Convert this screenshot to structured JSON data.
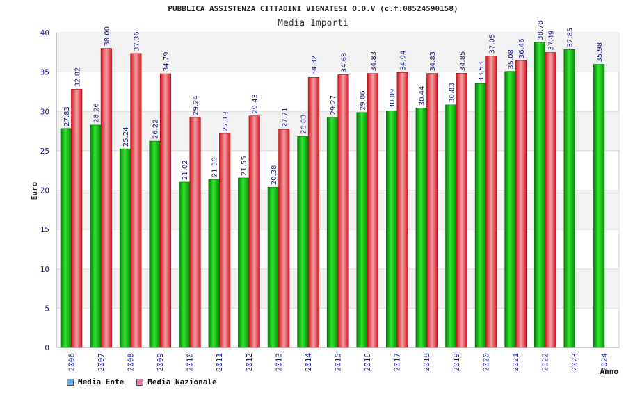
{
  "chart_data": {
    "type": "bar",
    "title": "PUBBLICA ASSISTENZA CITTADINI VIGNATESI O.D.V (c.f.08524590158)",
    "subtitle": "Media Importi",
    "xlabel": "Anno",
    "ylabel": "Euro",
    "ylim": [
      0,
      40
    ],
    "yticks": [
      0,
      5,
      10,
      15,
      20,
      25,
      30,
      35,
      40
    ],
    "categories": [
      "2006",
      "2007",
      "2008",
      "2009",
      "2010",
      "2011",
      "2012",
      "2013",
      "2014",
      "2015",
      "2016",
      "2017",
      "2018",
      "2019",
      "2020",
      "2021",
      "2022",
      "2023",
      "2024"
    ],
    "series": [
      {
        "name": "Media Ente",
        "color": "#1bb41b",
        "values": [
          27.83,
          28.26,
          25.24,
          26.22,
          21.02,
          21.36,
          21.55,
          20.38,
          26.83,
          29.27,
          29.86,
          30.09,
          30.44,
          30.83,
          33.53,
          35.08,
          38.78,
          37.85,
          35.98
        ],
        "labels": [
          "27.83",
          "28.26",
          "25.24",
          "26.22",
          "21.02",
          "21.36",
          "21.55",
          "20.38",
          "26.83",
          "29.27",
          "29.86",
          "30.09",
          "30.44",
          "30.83",
          "33.53",
          "35.08",
          "38.78",
          "37.85",
          "35.98"
        ]
      },
      {
        "name": "Media Nazionale",
        "color": "#e8323c",
        "values": [
          32.82,
          38.0,
          37.36,
          34.79,
          29.24,
          27.19,
          29.43,
          27.71,
          34.32,
          34.68,
          34.83,
          34.94,
          34.83,
          34.85,
          37.05,
          36.46,
          37.49,
          null,
          null
        ],
        "labels": [
          "32.82",
          "38.00",
          "37.36",
          "34.79",
          "29.24",
          "27.19",
          "29.43",
          "27.71",
          "34.32",
          "34.68",
          "34.83",
          "34.94",
          "34.83",
          "34.85",
          "37.05",
          "36.46",
          "37.49",
          null,
          null
        ]
      }
    ],
    "legend": {
      "position": "bottom-left",
      "items": [
        {
          "label": "Media Ente",
          "color": "#6fa8e8"
        },
        {
          "label": "Media Nazionale",
          "color": "#e87fb0"
        }
      ]
    },
    "grid": true
  }
}
